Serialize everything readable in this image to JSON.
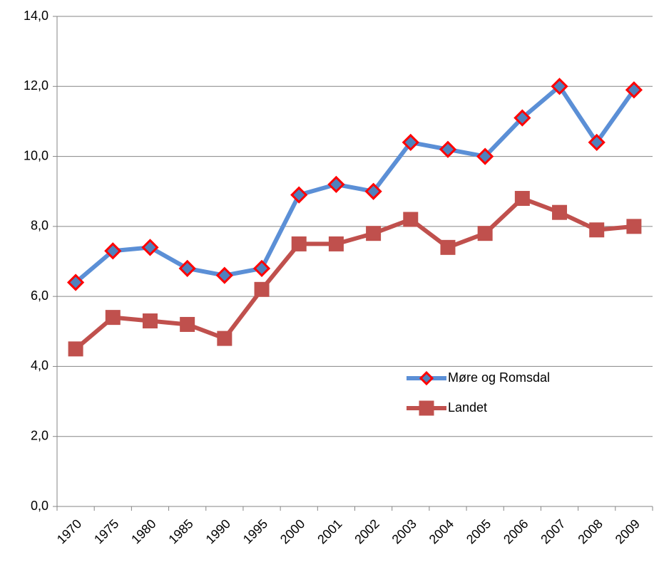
{
  "chart_data": {
    "type": "line",
    "categories": [
      "1970",
      "1975",
      "1980",
      "1985",
      "1990",
      "1995",
      "2000",
      "2001",
      "2002",
      "2003",
      "2004",
      "2005",
      "2006",
      "2007",
      "2008",
      "2009"
    ],
    "series": [
      {
        "name": "Møre og Romsdal",
        "color": "#5b8fd6",
        "marker": "diamond",
        "marker_color": "#4f81bd",
        "marker_edge": "#ff0000",
        "values": [
          6.4,
          7.3,
          7.4,
          6.8,
          6.6,
          6.8,
          8.9,
          9.2,
          9.0,
          10.4,
          10.2,
          10.0,
          11.1,
          12.0,
          10.4,
          11.9
        ]
      },
      {
        "name": "Landet",
        "color": "#c0504d",
        "marker": "square",
        "marker_color": "#c0504d",
        "marker_edge": "#c0504d",
        "values": [
          4.5,
          5.4,
          5.3,
          5.2,
          4.8,
          6.2,
          7.5,
          7.5,
          7.8,
          8.2,
          7.4,
          7.8,
          8.8,
          8.4,
          7.9,
          8.0
        ]
      }
    ],
    "ylim": [
      0,
      14
    ],
    "yticks": [
      {
        "value": 0,
        "label": "0,0"
      },
      {
        "value": 2,
        "label": "2,0"
      },
      {
        "value": 4,
        "label": "4,0"
      },
      {
        "value": 6,
        "label": "6,0"
      },
      {
        "value": 8,
        "label": "8,0"
      },
      {
        "value": 10,
        "label": "10,0"
      },
      {
        "value": 12,
        "label": "12,0"
      },
      {
        "value": 14,
        "label": "14,0"
      }
    ],
    "grid": true,
    "legend_loc": "lower right"
  }
}
